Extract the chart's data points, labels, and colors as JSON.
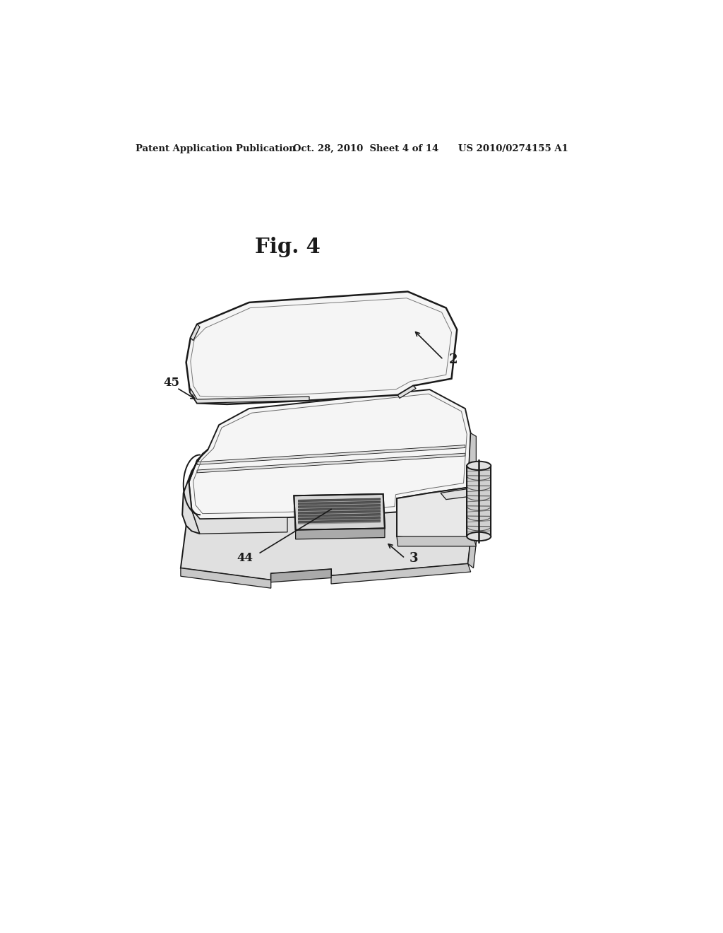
{
  "background_color": "#ffffff",
  "header_left": "Patent Application Publication",
  "header_center": "Oct. 28, 2010  Sheet 4 of 14",
  "header_right": "US 2010/0274155 A1",
  "fig_label": "Fig. 4",
  "text_color": "#1a1a1a",
  "line_color": "#1a1a1a",
  "fill_light": "#f5f5f5",
  "fill_mid": "#e0e0e0",
  "fill_dark": "#c8c8c8",
  "fill_darker": "#aaaaaa",
  "fill_vent": "#888888"
}
